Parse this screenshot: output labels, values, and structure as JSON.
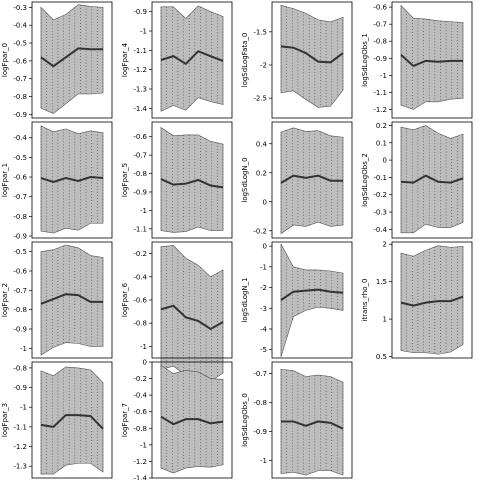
{
  "chart_data": [
    {
      "type": "area",
      "ylabel": "logFpar_0",
      "ylim": [
        -0.92,
        -0.27
      ],
      "yticks": [
        -0.3,
        -0.4,
        -0.5,
        -0.6,
        -0.7,
        -0.8,
        -0.9
      ],
      "x": [
        0,
        1,
        2,
        3,
        4,
        5
      ],
      "median": [
        -0.58,
        -0.63,
        -0.58,
        -0.53,
        -0.535,
        -0.535
      ],
      "upper": [
        -0.3,
        -0.37,
        -0.34,
        -0.285,
        -0.295,
        -0.3
      ],
      "lower": [
        -0.865,
        -0.895,
        -0.84,
        -0.785,
        -0.785,
        -0.78
      ]
    },
    {
      "type": "area",
      "ylabel": "logFpar_4",
      "ylim": [
        -1.45,
        -0.85
      ],
      "yticks": [
        -0.9,
        -1.0,
        -1.1,
        -1.2,
        -1.3,
        -1.4
      ],
      "x": [
        0,
        1,
        2,
        3,
        4,
        5
      ],
      "median": [
        -1.15,
        -1.13,
        -1.17,
        -1.105,
        -1.13,
        -1.155
      ],
      "upper": [
        -0.875,
        -0.875,
        -0.935,
        -0.87,
        -0.9,
        -0.925
      ],
      "lower": [
        -1.415,
        -1.385,
        -1.41,
        -1.345,
        -1.365,
        -1.38
      ]
    },
    {
      "type": "area",
      "ylabel": "logSdLogFata_0",
      "ylim": [
        -2.8,
        -1.05
      ],
      "yticks": [
        -1.5,
        -2.0,
        -2.5
      ],
      "x": [
        0,
        1,
        2,
        3,
        4,
        5
      ],
      "median": [
        -1.72,
        -1.74,
        -1.82,
        -1.95,
        -1.96,
        -1.82
      ],
      "upper": [
        -1.1,
        -1.15,
        -1.22,
        -1.32,
        -1.35,
        -1.28
      ],
      "lower": [
        -2.42,
        -2.39,
        -2.52,
        -2.64,
        -2.62,
        -2.38
      ]
    },
    {
      "type": "area",
      "ylabel": "logSdLogObs_1",
      "ylim": [
        -1.25,
        -0.57
      ],
      "yticks": [
        -0.6,
        -0.7,
        -0.8,
        -0.9,
        -1.0,
        -1.1,
        -1.2
      ],
      "x": [
        0,
        1,
        2,
        3,
        4,
        5
      ],
      "median": [
        -0.88,
        -0.945,
        -0.915,
        -0.92,
        -0.915,
        -0.915
      ],
      "upper": [
        -0.59,
        -0.665,
        -0.67,
        -0.68,
        -0.685,
        -0.69
      ],
      "lower": [
        -1.175,
        -1.2,
        -1.155,
        -1.155,
        -1.14,
        -1.135
      ]
    },
    {
      "type": "area",
      "ylabel": "logFpar_1",
      "ylim": [
        -0.91,
        -0.32
      ],
      "yticks": [
        -0.4,
        -0.5,
        -0.6,
        -0.7,
        -0.8,
        -0.9
      ],
      "x": [
        0,
        1,
        2,
        3,
        4,
        5
      ],
      "median": [
        -0.605,
        -0.625,
        -0.605,
        -0.62,
        -0.6,
        -0.605
      ],
      "upper": [
        -0.34,
        -0.37,
        -0.355,
        -0.38,
        -0.365,
        -0.375
      ],
      "lower": [
        -0.875,
        -0.885,
        -0.86,
        -0.87,
        -0.835,
        -0.835
      ]
    },
    {
      "type": "area",
      "ylabel": "logFpar_5",
      "ylim": [
        -1.15,
        -0.52
      ],
      "yticks": [
        -0.6,
        -0.7,
        -0.8,
        -0.9,
        -1.0,
        -1.1
      ],
      "x": [
        0,
        1,
        2,
        3,
        4,
        5
      ],
      "median": [
        -0.83,
        -0.86,
        -0.855,
        -0.835,
        -0.865,
        -0.875
      ],
      "upper": [
        -0.55,
        -0.595,
        -0.59,
        -0.59,
        -0.625,
        -0.64
      ],
      "lower": [
        -1.11,
        -1.12,
        -1.115,
        -1.09,
        -1.11,
        -1.11
      ]
    },
    {
      "type": "area",
      "ylabel": "logSdLogN_0",
      "ylim": [
        -0.25,
        0.55
      ],
      "yticks": [
        0.4,
        0.2,
        0.0,
        -0.2
      ],
      "x": [
        0,
        1,
        2,
        3,
        4,
        5
      ],
      "median": [
        0.13,
        0.18,
        0.165,
        0.18,
        0.145,
        0.145
      ],
      "upper": [
        0.48,
        0.51,
        0.485,
        0.49,
        0.455,
        0.445
      ],
      "lower": [
        -0.22,
        -0.16,
        -0.17,
        -0.14,
        -0.17,
        -0.16
      ]
    },
    {
      "type": "area",
      "ylabel": "logSdLogObs_2",
      "ylim": [
        -0.45,
        0.22
      ],
      "yticks": [
        0.2,
        0.1,
        0.0,
        -0.1,
        -0.2,
        -0.3,
        -0.4
      ],
      "x": [
        0,
        1,
        2,
        3,
        4,
        5
      ],
      "median": [
        -0.125,
        -0.13,
        -0.09,
        -0.125,
        -0.13,
        -0.105
      ],
      "upper": [
        0.19,
        0.175,
        0.2,
        0.155,
        0.125,
        0.15
      ],
      "lower": [
        -0.42,
        -0.42,
        -0.37,
        -0.39,
        -0.39,
        -0.36
      ]
    },
    {
      "type": "area",
      "ylabel": "logFpar_2",
      "ylim": [
        -1.05,
        -0.45
      ],
      "yticks": [
        -0.5,
        -0.6,
        -0.7,
        -0.8,
        -0.9,
        -1.0
      ],
      "x": [
        0,
        1,
        2,
        3,
        4,
        5
      ],
      "median": [
        -0.77,
        -0.745,
        -0.72,
        -0.725,
        -0.76,
        -0.76
      ],
      "upper": [
        -0.5,
        -0.49,
        -0.465,
        -0.48,
        -0.52,
        -0.53
      ],
      "lower": [
        -1.035,
        -0.995,
        -0.97,
        -0.975,
        -0.99,
        -0.99
      ]
    },
    {
      "type": "area",
      "ylabel": "logFpar_6",
      "ylim": [
        -1.1,
        -0.1
      ],
      "yticks": [
        -0.2,
        -0.4,
        -0.6,
        -0.8,
        -1.0
      ],
      "x": [
        0,
        1,
        2,
        3,
        4,
        5
      ],
      "median": [
        -0.68,
        -0.65,
        -0.75,
        -0.78,
        -0.85,
        -0.79
      ],
      "upper": [
        -0.14,
        -0.13,
        -0.24,
        -0.3,
        -0.4,
        -0.34
      ],
      "lower": [
        -1.2,
        -1.17,
        -1.25,
        -1.25,
        -1.3,
        -1.23
      ]
    },
    {
      "type": "area",
      "ylabel": "logSdLogN_1",
      "ylim": [
        -5.4,
        0.2
      ],
      "yticks": [
        0,
        -1,
        -2,
        -3,
        -4,
        -5
      ],
      "x": [
        0,
        1,
        2,
        3,
        4,
        5
      ],
      "median": [
        -2.6,
        -2.2,
        -2.15,
        -2.1,
        -2.2,
        -2.25
      ],
      "upper": [
        0.1,
        -1.0,
        -1.15,
        -1.15,
        -1.2,
        -1.3
      ],
      "lower": [
        -5.35,
        -3.4,
        -3.1,
        -2.95,
        -3.0,
        -3.1
      ]
    },
    {
      "type": "area",
      "ylabel": "itrans_rho_0",
      "ylim": [
        0.48,
        2.03
      ],
      "yticks": [
        2.0,
        1.5,
        1.0,
        0.5
      ],
      "x": [
        0,
        1,
        2,
        3,
        4,
        5
      ],
      "median": [
        1.22,
        1.18,
        1.22,
        1.24,
        1.24,
        1.3
      ],
      "upper": [
        1.88,
        1.84,
        1.92,
        1.98,
        1.96,
        1.97
      ],
      "lower": [
        0.58,
        0.55,
        0.55,
        0.53,
        0.56,
        0.66
      ]
    },
    {
      "type": "area",
      "ylabel": "logFpar_3",
      "ylim": [
        -1.36,
        -0.77
      ],
      "yticks": [
        -0.8,
        -0.9,
        -1.0,
        -1.1,
        -1.2,
        -1.3
      ],
      "x": [
        0,
        1,
        2,
        3,
        4,
        5
      ],
      "median": [
        -1.09,
        -1.1,
        -1.04,
        -1.04,
        -1.045,
        -1.11
      ],
      "upper": [
        -0.815,
        -0.84,
        -0.795,
        -0.8,
        -0.81,
        -0.875
      ],
      "lower": [
        -1.34,
        -1.34,
        -1.295,
        -1.285,
        -1.285,
        -1.33
      ]
    },
    {
      "type": "area",
      "ylabel": "logFpar_7",
      "ylim": [
        -1.4,
        0.0
      ],
      "yticks": [
        0.0,
        -0.2,
        -0.4,
        -0.6,
        -0.8,
        -1.0,
        -1.2,
        -1.4
      ],
      "x": [
        0,
        1,
        2,
        3,
        4,
        5
      ],
      "median": [
        -0.66,
        -0.75,
        -0.69,
        -0.69,
        -0.74,
        -0.72
      ],
      "upper": [
        -0.04,
        -0.14,
        -0.1,
        -0.12,
        -0.2,
        -0.21
      ],
      "lower": [
        -1.28,
        -1.34,
        -1.28,
        -1.26,
        -1.27,
        -1.24
      ]
    },
    {
      "type": "area",
      "ylabel": "logSdLogObs_0",
      "ylim": [
        -1.06,
        -0.66
      ],
      "yticks": [
        -0.7,
        -0.8,
        -0.9,
        -1.0
      ],
      "x": [
        0,
        1,
        2,
        3,
        4,
        5
      ],
      "median": [
        -0.865,
        -0.865,
        -0.88,
        -0.865,
        -0.87,
        -0.89
      ],
      "upper": [
        -0.685,
        -0.69,
        -0.71,
        -0.705,
        -0.71,
        -0.73
      ],
      "lower": [
        -1.045,
        -1.04,
        -1.05,
        -1.035,
        -1.035,
        -1.05
      ]
    }
  ]
}
